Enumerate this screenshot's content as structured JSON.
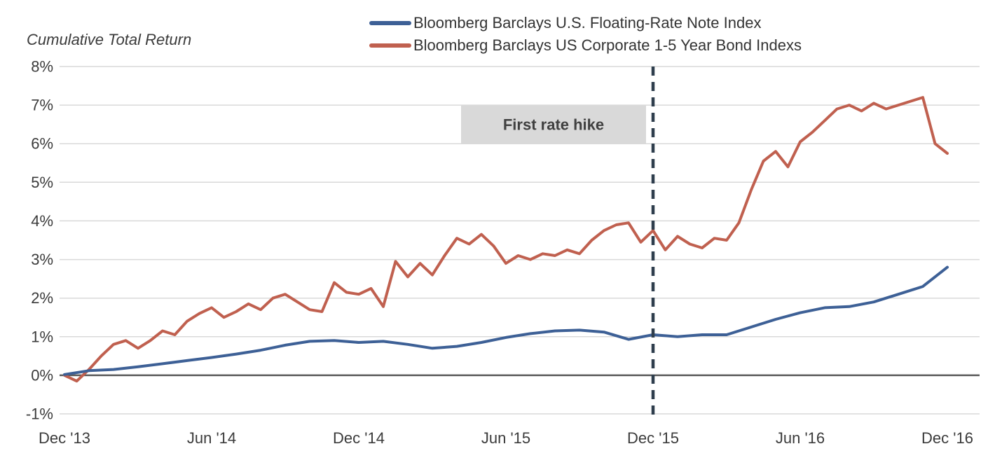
{
  "chart_title": "Cumulative Total Return",
  "colors": {
    "background": "#ffffff",
    "grid": "#d9d9d9",
    "zero_line": "#595959",
    "axis_text": "#3b3b3b",
    "legend_text": "#333333",
    "vline": "#2f3e4d",
    "annotation_box": "#d9d9d9",
    "annotation_text": "#404040"
  },
  "chart_data": {
    "type": "line",
    "title": "Cumulative Total Return",
    "xlabel": "",
    "ylabel": "",
    "x_unit": "months (0 = Dec '13)",
    "x_tick_labels": [
      "Dec '13",
      "Jun '14",
      "Dec '14",
      "Jun '15",
      "Dec '15",
      "Jun '16",
      "Dec '16"
    ],
    "x_tick_months": [
      0,
      6,
      12,
      18,
      24,
      30,
      36
    ],
    "ylim": [
      -1,
      8
    ],
    "y_ticks": [
      8,
      7,
      6,
      5,
      4,
      3,
      2,
      1,
      0,
      -1
    ],
    "y_tick_suffix": "%",
    "grid": "horizontal-only",
    "legend_position": "top-center",
    "series": [
      {
        "name": "Bloomberg Barclays U.S. Floating-Rate Note Index",
        "color": "#3d6096",
        "x_start_month": 0,
        "x_step_months": 1,
        "values": [
          0.02,
          0.12,
          0.15,
          0.22,
          0.3,
          0.38,
          0.46,
          0.55,
          0.65,
          0.78,
          0.88,
          0.9,
          0.85,
          0.88,
          0.8,
          0.7,
          0.75,
          0.85,
          0.98,
          1.08,
          1.15,
          1.17,
          1.12,
          0.93,
          1.05,
          1.0,
          1.05,
          1.05,
          1.25,
          1.45,
          1.62,
          1.75,
          1.78,
          1.9,
          2.1,
          2.3,
          2.8
        ]
      },
      {
        "name": "Bloomberg Barclays US Corporate 1-5 Year Bond Indexs",
        "color": "#c0604f",
        "x_start_month": 0,
        "x_step_months": 0.5,
        "values": [
          0.0,
          -0.15,
          0.15,
          0.5,
          0.8,
          0.9,
          0.7,
          0.9,
          1.15,
          1.05,
          1.4,
          1.6,
          1.75,
          1.5,
          1.65,
          1.85,
          1.7,
          2.0,
          2.1,
          1.9,
          1.7,
          1.65,
          2.4,
          2.15,
          2.1,
          2.25,
          1.78,
          2.95,
          2.55,
          2.9,
          2.6,
          3.1,
          3.55,
          3.4,
          3.65,
          3.35,
          2.9,
          3.1,
          3.0,
          3.15,
          3.1,
          3.25,
          3.15,
          3.5,
          3.75,
          3.9,
          3.95,
          3.45,
          3.75,
          3.25,
          3.6,
          3.4,
          3.3,
          3.55,
          3.5,
          3.95,
          4.8,
          5.55,
          5.8,
          5.4,
          6.05,
          6.3,
          6.6,
          6.9,
          7.0,
          6.85,
          7.05,
          6.9,
          7.0,
          7.1,
          7.2,
          6.0,
          5.75
        ]
      }
    ],
    "vline": {
      "x_month": 24,
      "x_label": "Dec '15",
      "style": "dashed",
      "label": "First rate hike"
    }
  }
}
